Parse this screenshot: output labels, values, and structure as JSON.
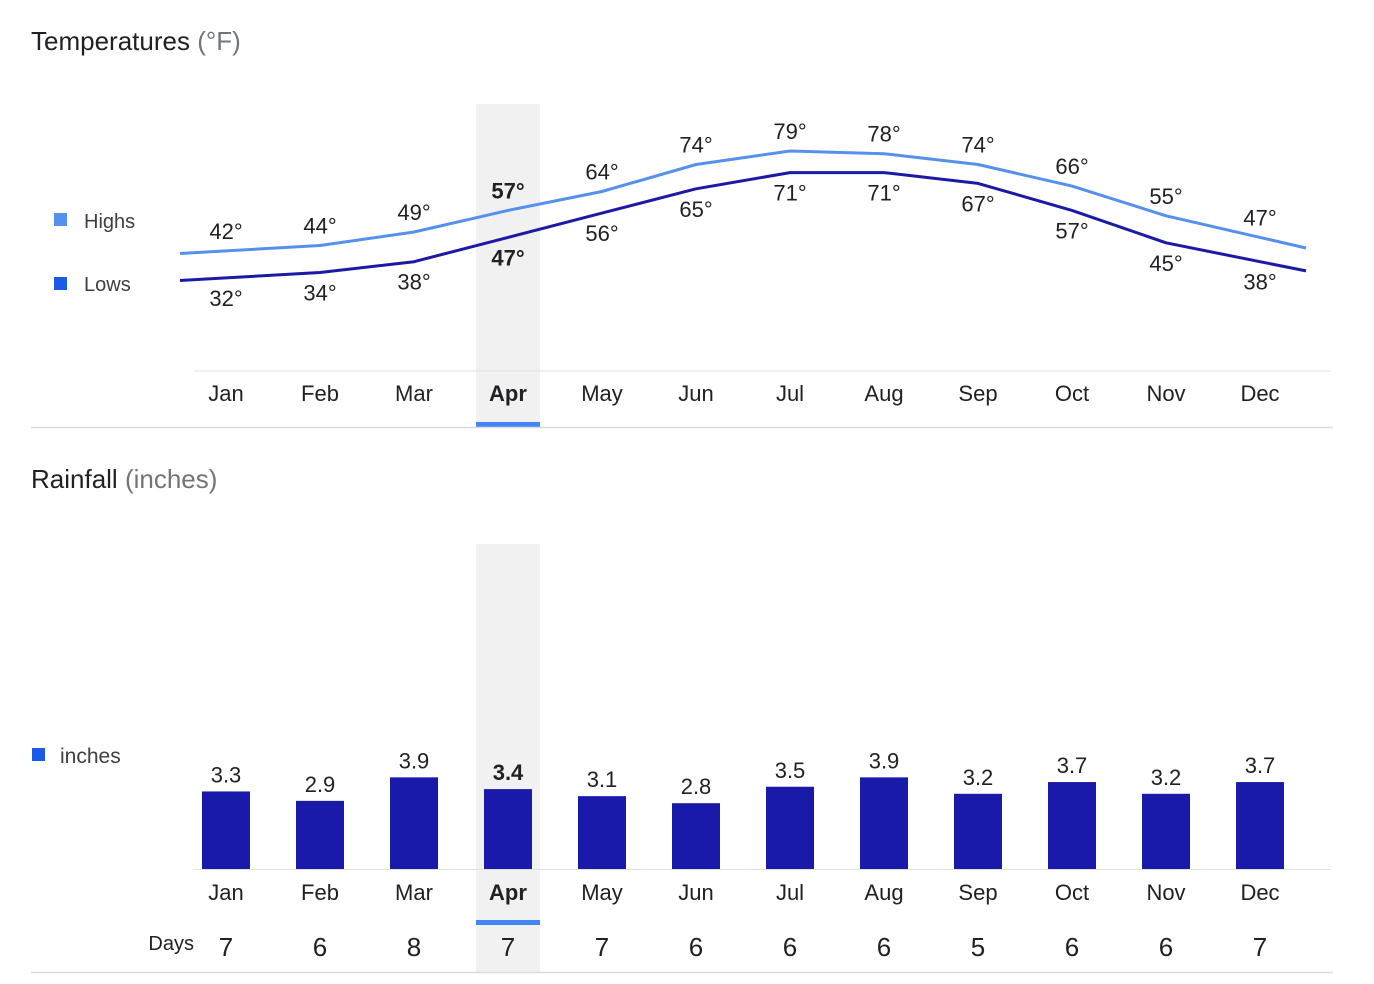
{
  "temperature_section": {
    "title": "Temperatures",
    "unit": "(°F)"
  },
  "rainfall_section": {
    "title": "Rainfall",
    "unit": "(inches)",
    "days_label": "Days",
    "days": [
      7,
      6,
      8,
      7,
      7,
      6,
      6,
      6,
      5,
      6,
      6,
      7
    ]
  },
  "selected_month_index": 3,
  "colors": {
    "highs": "#5591ec",
    "lows": "#1a1aa6",
    "rain_bar": "#1a1aaa",
    "highlight_band": "#f1f1f1",
    "selected_indicator": "#4285f4",
    "axis_line": "#e0e0e0",
    "legend_lows_marker": "#1a5ae6",
    "legend_inches_marker": "#1a5ae6"
  },
  "chart_data": [
    {
      "type": "line",
      "title": "Temperatures (°F)",
      "categories": [
        "Jan",
        "Feb",
        "Mar",
        "Apr",
        "May",
        "Jun",
        "Jul",
        "Aug",
        "Sep",
        "Oct",
        "Nov",
        "Dec"
      ],
      "series": [
        {
          "name": "Highs",
          "values": [
            42,
            44,
            49,
            57,
            64,
            74,
            79,
            78,
            74,
            66,
            55,
            47
          ],
          "labels": [
            "42°",
            "44°",
            "49°",
            "57°",
            "64°",
            "74°",
            "79°",
            "78°",
            "74°",
            "66°",
            "55°",
            "47°"
          ]
        },
        {
          "name": "Lows",
          "values": [
            32,
            34,
            38,
            47,
            56,
            65,
            71,
            71,
            67,
            57,
            45,
            38
          ],
          "labels": [
            "32°",
            "34°",
            "38°",
            "47°",
            "56°",
            "65°",
            "71°",
            "71°",
            "67°",
            "57°",
            "45°",
            "38°"
          ]
        }
      ],
      "legend": "left",
      "grid": false
    },
    {
      "type": "bar",
      "title": "Rainfall (inches)",
      "categories": [
        "Jan",
        "Feb",
        "Mar",
        "Apr",
        "May",
        "Jun",
        "Jul",
        "Aug",
        "Sep",
        "Oct",
        "Nov",
        "Dec"
      ],
      "series": [
        {
          "name": "inches",
          "values": [
            3.3,
            2.9,
            3.9,
            3.4,
            3.1,
            2.8,
            3.5,
            3.9,
            3.2,
            3.7,
            3.2,
            3.7
          ],
          "labels": [
            "3.3",
            "2.9",
            "3.9",
            "3.4",
            "3.1",
            "2.8",
            "3.5",
            "3.9",
            "3.2",
            "3.7",
            "3.2",
            "3.7"
          ]
        }
      ],
      "ylim": [
        0,
        3.9
      ],
      "legend": "left",
      "grid": false
    }
  ]
}
